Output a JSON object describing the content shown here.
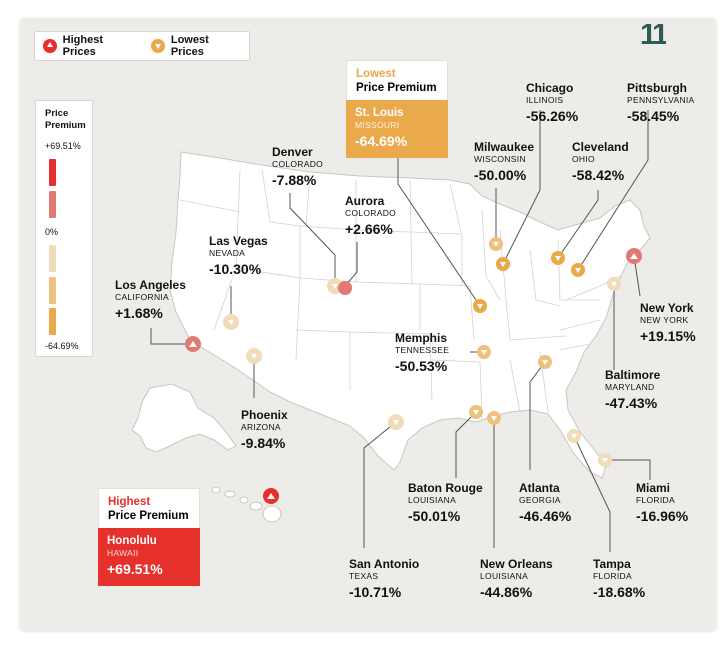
{
  "legend": {
    "highest_label": "Highest Prices",
    "lowest_label": "Lowest Prices"
  },
  "scale": {
    "title_line1": "Price",
    "title_line2": "Premium",
    "max_label": "+69.51%",
    "mid_label": "0%",
    "min_label": "-64.69%",
    "colors": [
      "#e5302b",
      "#e07a72",
      "#f0dcb8",
      "#ecc27e",
      "#eaa94a"
    ]
  },
  "lowest_box": {
    "heading_line1": "Lowest",
    "heading_line2": "Price Premium",
    "city": "St. Louis",
    "state": "MISSOURI",
    "value": "-64.69%",
    "color": "#eaa94a"
  },
  "highest_box": {
    "heading_line1": "Highest",
    "heading_line2": "Price Premium",
    "city": "Honolulu",
    "state": "HAWAII",
    "value": "+69.51%",
    "color": "#e5302b"
  },
  "cities": [
    {
      "key": "denver",
      "city": "Denver",
      "state": "COLORADO",
      "value": "-7.88%",
      "type": "low"
    },
    {
      "key": "aurora",
      "city": "Aurora",
      "state": "COLORADO",
      "value": "+2.66%",
      "type": "high"
    },
    {
      "key": "las-vegas",
      "city": "Las Vegas",
      "state": "NEVADA",
      "value": "-10.30%",
      "type": "low"
    },
    {
      "key": "los-angeles",
      "city": "Los Angeles",
      "state": "CALIFORNIA",
      "value": "+1.68%",
      "type": "high"
    },
    {
      "key": "phoenix",
      "city": "Phoenix",
      "state": "ARIZONA",
      "value": "-9.84%",
      "type": "low"
    },
    {
      "key": "chicago",
      "city": "Chicago",
      "state": "ILLINOIS",
      "value": "-56.26%",
      "type": "low"
    },
    {
      "key": "milwaukee",
      "city": "Milwaukee",
      "state": "WISCONSIN",
      "value": "-50.00%",
      "type": "low"
    },
    {
      "key": "pittsburgh",
      "city": "Pittsburgh",
      "state": "PENNSYLVANIA",
      "value": "-58.45%",
      "type": "low"
    },
    {
      "key": "cleveland",
      "city": "Cleveland",
      "state": "OHIO",
      "value": "-58.42%",
      "type": "low"
    },
    {
      "key": "new-york",
      "city": "New York",
      "state": "NEW YORK",
      "value": "+19.15%",
      "type": "high"
    },
    {
      "key": "memphis",
      "city": "Memphis",
      "state": "TENNESSEE",
      "value": "-50.53%",
      "type": "low"
    },
    {
      "key": "baltimore",
      "city": "Baltimore",
      "state": "MARYLAND",
      "value": "-47.43%",
      "type": "low"
    },
    {
      "key": "baton-rouge",
      "city": "Baton Rouge",
      "state": "LOUISIANA",
      "value": "-50.01%",
      "type": "low"
    },
    {
      "key": "atlanta",
      "city": "Atlanta",
      "state": "GEORGIA",
      "value": "-46.46%",
      "type": "low"
    },
    {
      "key": "miami",
      "city": "Miami",
      "state": "FLORIDA",
      "value": "-16.96%",
      "type": "low"
    },
    {
      "key": "san-antonio",
      "city": "San Antonio",
      "state": "TEXAS",
      "value": "-10.71%",
      "type": "low"
    },
    {
      "key": "new-orleans",
      "city": "New Orleans",
      "state": "LOUISIANA",
      "value": "-44.86%",
      "type": "low"
    },
    {
      "key": "tampa",
      "city": "Tampa",
      "state": "FLORIDA",
      "value": "-18.68%",
      "type": "low"
    }
  ],
  "logo_text": "11"
}
